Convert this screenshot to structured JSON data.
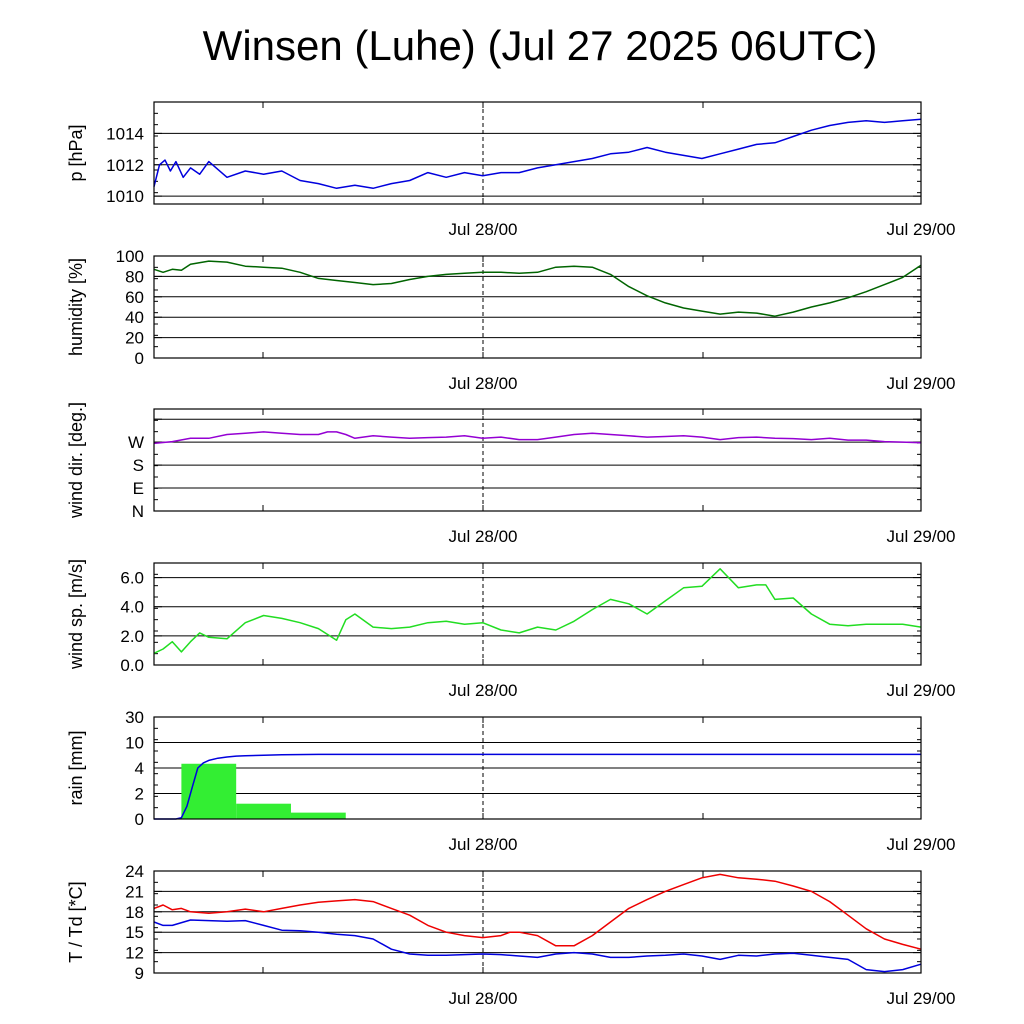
{
  "title": "Winsen (Luhe) (Jul 27 2025 06UTC)",
  "x_tick_labels": [
    "Jul 28/00",
    "Jul 29/00"
  ],
  "colors": {
    "pressure": "#0000dd",
    "humidity": "#006400",
    "wind_dir": "#9400d3",
    "wind_speed": "#22dd22",
    "rain_bar": "#33ee33",
    "rain_cum": "#0000dd",
    "temperature": "#ee0000",
    "dewpoint": "#0000dd"
  },
  "chart_data": [
    {
      "type": "line",
      "ylabel": "p [hPa]",
      "x_unit": "hours since Jul 27 06UTC",
      "xlim": [
        0,
        42
      ],
      "ylim": [
        1009.5,
        1016
      ],
      "yticks": [
        1010,
        1012,
        1014
      ],
      "ytick_labels": [
        "1010",
        "1012",
        "1014"
      ],
      "grid": true,
      "series": [
        {
          "color": "pressure",
          "x": [
            0,
            0.3,
            0.6,
            0.9,
            1.2,
            1.6,
            2.0,
            2.5,
            3,
            4,
            5,
            6,
            7,
            8,
            9,
            10,
            11,
            12,
            13,
            14,
            15,
            16,
            17,
            18,
            19,
            20,
            21,
            22,
            23,
            24,
            25,
            26,
            27,
            28,
            29,
            30,
            31,
            32,
            33,
            34,
            35,
            36,
            37,
            38,
            39,
            40,
            41,
            42
          ],
          "y": [
            1010.6,
            1012.0,
            1012.3,
            1011.6,
            1012.2,
            1011.2,
            1011.8,
            1011.4,
            1012.2,
            1011.2,
            1011.6,
            1011.4,
            1011.6,
            1011.0,
            1010.8,
            1010.5,
            1010.7,
            1010.5,
            1010.8,
            1011.0,
            1011.5,
            1011.2,
            1011.5,
            1011.3,
            1011.5,
            1011.5,
            1011.8,
            1012.0,
            1012.2,
            1012.4,
            1012.7,
            1012.8,
            1013.1,
            1012.8,
            1012.6,
            1012.4,
            1012.7,
            1013.0,
            1013.3,
            1013.4,
            1013.8,
            1014.2,
            1014.5,
            1014.7,
            1014.8,
            1014.7,
            1014.8,
            1014.9
          ]
        }
      ]
    },
    {
      "type": "line",
      "ylabel": "humidity [%]",
      "xlim": [
        0,
        42
      ],
      "ylim": [
        0,
        100
      ],
      "yticks": [
        0,
        20,
        40,
        60,
        80,
        100
      ],
      "ytick_labels": [
        "0",
        "20",
        "40",
        "60",
        "80",
        "100"
      ],
      "grid": true,
      "series": [
        {
          "color": "humidity",
          "x": [
            0,
            0.5,
            1,
            1.5,
            2,
            3,
            4,
            5,
            6,
            7,
            8,
            9,
            10,
            11,
            12,
            13,
            14,
            15,
            16,
            17,
            18,
            19,
            20,
            21,
            22,
            23,
            24,
            25,
            26,
            27,
            28,
            29,
            30,
            31,
            32,
            33,
            34,
            35,
            36,
            37,
            38,
            39,
            40,
            41,
            42
          ],
          "y": [
            87,
            84,
            87,
            86,
            92,
            95,
            94,
            90,
            89,
            88,
            84,
            78,
            76,
            74,
            72,
            73,
            77,
            80,
            82,
            83,
            84,
            84,
            83,
            84,
            89,
            90,
            89,
            82,
            70,
            61,
            54,
            49,
            46,
            43,
            45,
            44,
            41,
            45,
            50,
            54,
            59,
            65,
            72,
            79,
            91
          ]
        }
      ]
    },
    {
      "type": "line",
      "ylabel": "wind dir. [deg.]",
      "xlim": [
        0,
        42
      ],
      "ylim": [
        0,
        400
      ],
      "yticks": [
        0,
        90,
        180,
        270,
        360
      ],
      "ytick_labels": [
        "N",
        "E",
        "S",
        "W",
        ""
      ],
      "grid": true,
      "series": [
        {
          "color": "wind_dir",
          "x": [
            0,
            1,
            2,
            3,
            4,
            5,
            6,
            7,
            8,
            9,
            9.5,
            10,
            10.5,
            11,
            12,
            13,
            14,
            15,
            16,
            17,
            18,
            19,
            20,
            21,
            22,
            23,
            24,
            25,
            26,
            27,
            28,
            29,
            30,
            31,
            32,
            33,
            34,
            35,
            36,
            37,
            38,
            39,
            40,
            41,
            42
          ],
          "y": [
            265,
            272,
            285,
            285,
            300,
            305,
            310,
            305,
            300,
            300,
            310,
            310,
            300,
            285,
            295,
            290,
            285,
            288,
            290,
            295,
            285,
            290,
            280,
            280,
            290,
            300,
            305,
            300,
            295,
            290,
            292,
            295,
            290,
            280,
            288,
            290,
            285,
            284,
            280,
            285,
            278,
            278,
            272,
            270,
            268
          ]
        }
      ]
    },
    {
      "type": "line",
      "ylabel": "wind sp. [m/s]",
      "xlim": [
        0,
        42
      ],
      "ylim": [
        0,
        7
      ],
      "yticks": [
        0,
        2,
        4,
        6
      ],
      "ytick_labels": [
        "0.0",
        "2.0",
        "4.0",
        "6.0"
      ],
      "grid": true,
      "series": [
        {
          "color": "wind_speed",
          "x": [
            0,
            0.5,
            1,
            1.5,
            2,
            2.5,
            3,
            4,
            5,
            6,
            7,
            8,
            9,
            10,
            10.5,
            11,
            12,
            13,
            14,
            15,
            16,
            17,
            18,
            19,
            20,
            21,
            22,
            23,
            24,
            25,
            26,
            27,
            28,
            29,
            30,
            31,
            32,
            33,
            33.5,
            34,
            35,
            36,
            37,
            38,
            39,
            40,
            41,
            42
          ],
          "y": [
            0.8,
            1.1,
            1.6,
            0.9,
            1.6,
            2.2,
            1.9,
            1.8,
            2.9,
            3.4,
            3.2,
            2.9,
            2.5,
            1.7,
            3.1,
            3.5,
            2.6,
            2.5,
            2.6,
            2.9,
            3.0,
            2.8,
            2.9,
            2.4,
            2.2,
            2.6,
            2.4,
            3.0,
            3.8,
            4.5,
            4.2,
            3.5,
            4.4,
            5.3,
            5.4,
            6.6,
            5.3,
            5.5,
            5.5,
            4.5,
            4.6,
            3.5,
            2.8,
            2.7,
            2.8,
            2.8,
            2.8,
            2.6
          ]
        }
      ]
    },
    {
      "type": "bar",
      "ylabel": "rain [mm]",
      "xlim": [
        0,
        42
      ],
      "ylim": [
        0,
        30
      ],
      "yticks": [
        0,
        2,
        4,
        10,
        30
      ],
      "ytick_labels": [
        "0",
        "2",
        "4",
        "10",
        "30"
      ],
      "grid": true,
      "bars": [
        {
          "color": "rain_bar",
          "x0": 1.5,
          "x1": 4.5,
          "value": 5.0
        },
        {
          "color": "rain_bar",
          "x0": 4.5,
          "x1": 7.5,
          "value": 1.2
        },
        {
          "color": "rain_bar",
          "x0": 7.5,
          "x1": 10.5,
          "value": 0.5
        }
      ],
      "series": [
        {
          "color": "rain_cum",
          "x": [
            0,
            1.2,
            1.5,
            1.8,
            2.1,
            2.4,
            2.7,
            3.0,
            3.5,
            4.0,
            4.5,
            5.0,
            6.0,
            7.0,
            9.0,
            42.0
          ],
          "y": [
            0,
            0,
            0.1,
            1.0,
            2.5,
            4.0,
            5.2,
            5.8,
            6.3,
            6.6,
            6.8,
            6.9,
            7.0,
            7.1,
            7.2,
            7.2
          ]
        }
      ]
    },
    {
      "type": "line",
      "ylabel": "T / Td [*C]",
      "xlim": [
        0,
        42
      ],
      "ylim": [
        9,
        24
      ],
      "yticks": [
        9,
        12,
        15,
        18,
        21,
        24
      ],
      "ytick_labels": [
        "9",
        "12",
        "15",
        "18",
        "21",
        "24"
      ],
      "grid": true,
      "series": [
        {
          "color": "temperature",
          "x": [
            0,
            0.5,
            1,
            1.5,
            2,
            3,
            4,
            5,
            6,
            7,
            8,
            9,
            10,
            11,
            12,
            13,
            14,
            15,
            16,
            17,
            18,
            19,
            19.5,
            20,
            21,
            22,
            23,
            24,
            25,
            26,
            27,
            28,
            29,
            30,
            31,
            32,
            33,
            34,
            35,
            36,
            37,
            38,
            39,
            40,
            41,
            42
          ],
          "y": [
            18.5,
            19.0,
            18.3,
            18.5,
            18.0,
            17.8,
            18.0,
            18.4,
            18.0,
            18.5,
            19.0,
            19.4,
            19.6,
            19.8,
            19.5,
            18.5,
            17.5,
            16.0,
            15.0,
            14.5,
            14.2,
            14.5,
            15.0,
            15.0,
            14.5,
            13.0,
            13.0,
            14.5,
            16.5,
            18.5,
            19.8,
            21.0,
            22.0,
            23.0,
            23.5,
            23.0,
            22.8,
            22.5,
            21.8,
            21.0,
            19.5,
            17.5,
            15.5,
            14.0,
            13.2,
            12.5
          ]
        },
        {
          "color": "dewpoint",
          "x": [
            0,
            0.5,
            1,
            2,
            3,
            4,
            5,
            6,
            7,
            8,
            9,
            10,
            11,
            12,
            13,
            14,
            15,
            16,
            17,
            18,
            19,
            20,
            21,
            22,
            23,
            24,
            25,
            26,
            27,
            28,
            29,
            30,
            31,
            32,
            33,
            34,
            35,
            36,
            37,
            38,
            39,
            40,
            41,
            42
          ],
          "y": [
            16.5,
            16.0,
            16.0,
            16.8,
            16.7,
            16.6,
            16.7,
            16.0,
            15.3,
            15.2,
            15.0,
            14.7,
            14.5,
            14.0,
            12.5,
            11.8,
            11.6,
            11.6,
            11.7,
            11.8,
            11.7,
            11.5,
            11.3,
            11.8,
            12.0,
            11.8,
            11.3,
            11.3,
            11.5,
            11.6,
            11.8,
            11.5,
            11.0,
            11.6,
            11.5,
            11.8,
            11.9,
            11.6,
            11.3,
            11.0,
            9.5,
            9.2,
            9.5,
            10.3
          ]
        }
      ]
    }
  ]
}
